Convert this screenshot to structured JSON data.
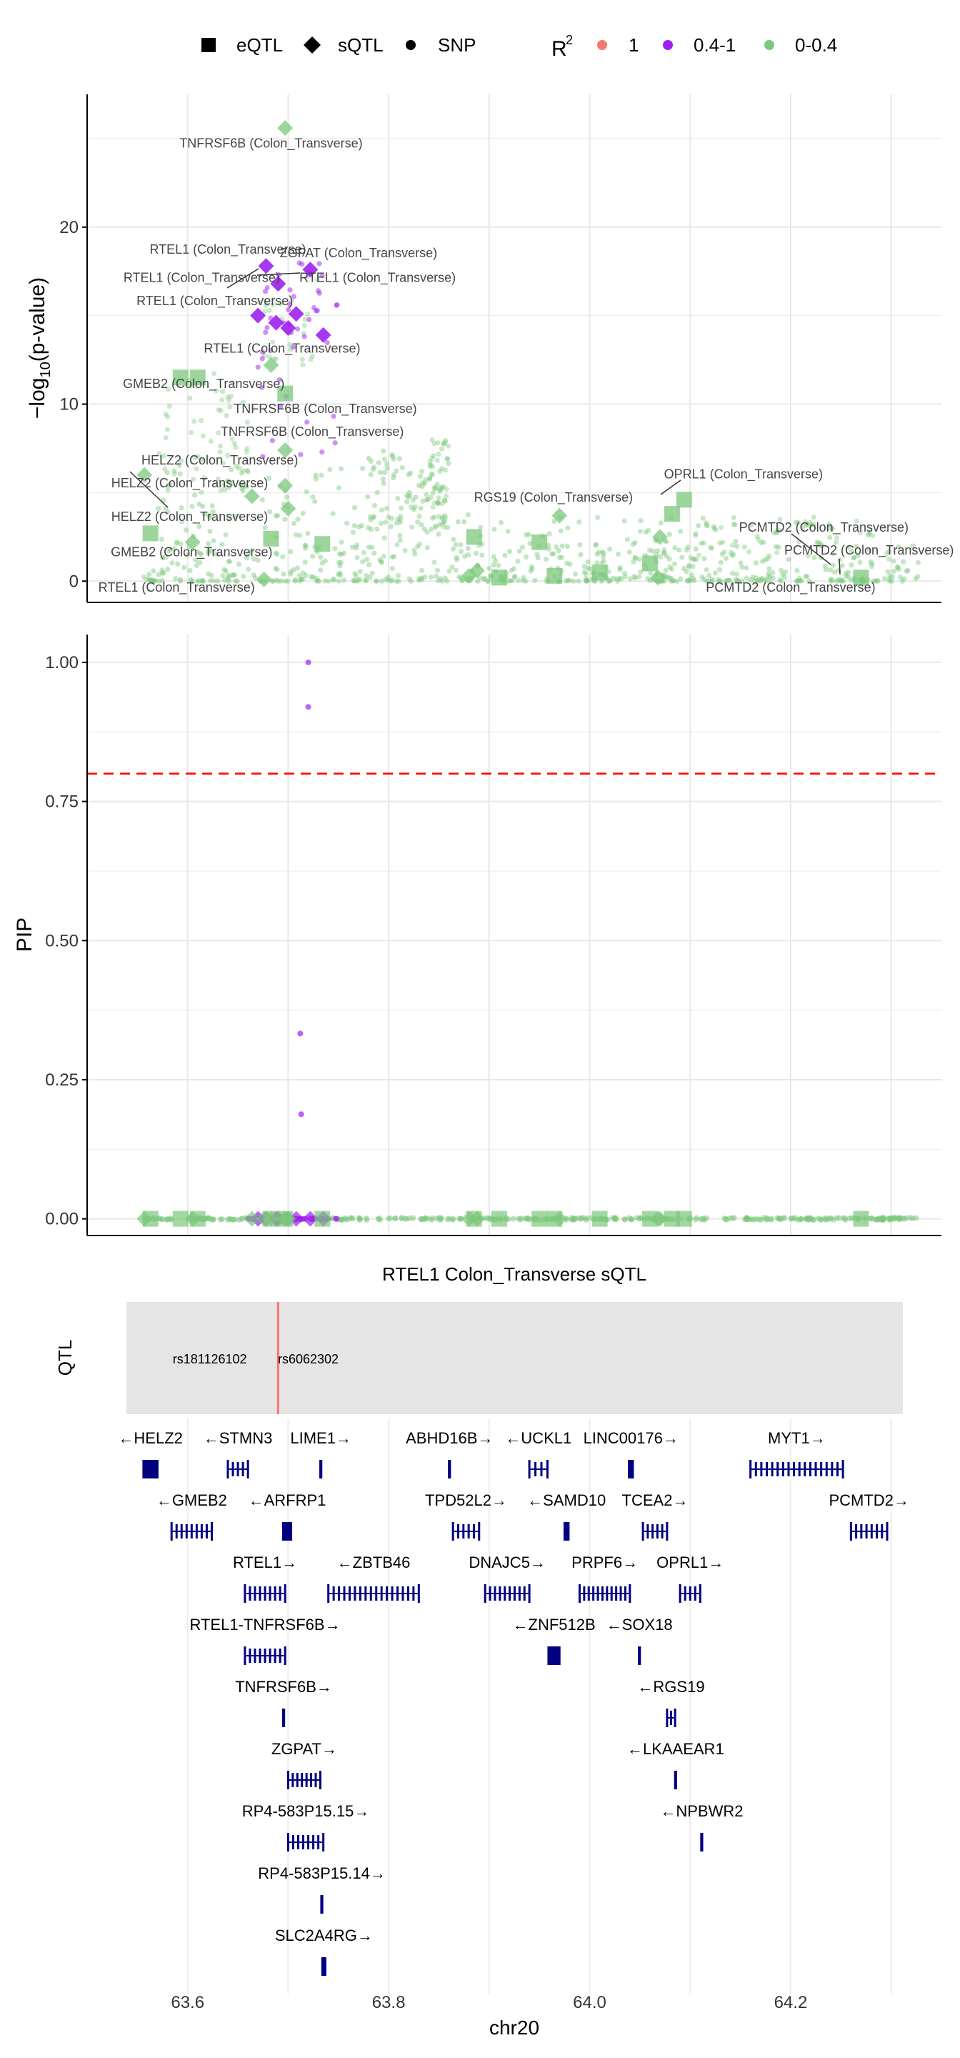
{
  "legend": {
    "shape_items": [
      {
        "label": "eQTL",
        "shape": "square"
      },
      {
        "label": "sQTL",
        "shape": "diamond"
      },
      {
        "label": "SNP",
        "shape": "circle"
      }
    ],
    "r2_title_main": "R",
    "r2_title_sup": "2",
    "r2_items": [
      {
        "label": "1",
        "color": "#F8766D"
      },
      {
        "label": "0.4-1",
        "color": "#A020F0"
      },
      {
        "label": "0-0.4",
        "color": "#7CC87C"
      }
    ]
  },
  "chart_data": [
    {
      "type": "scatter",
      "name_key": "pvalue-panel",
      "ylabel_main": "−log",
      "ylabel_sub": "10",
      "ylabel_tail": "(p-value)",
      "xlim": [
        63.5,
        64.35
      ],
      "ylim": [
        -1.2,
        27.5
      ],
      "yticks": [
        0,
        10,
        20
      ],
      "xgrid": [
        63.6,
        63.7,
        63.8,
        63.9,
        64.0,
        64.1,
        64.2,
        64.3
      ],
      "grid": true,
      "colors": {
        "low": "#7CC87C",
        "high": "#A020F0"
      },
      "points": [
        {
          "x": 63.697,
          "y": 25.6,
          "shape": "diamond",
          "r2": "low"
        },
        {
          "x": 63.678,
          "y": 17.8,
          "shape": "diamond",
          "r2": "high"
        },
        {
          "x": 63.722,
          "y": 17.6,
          "shape": "diamond",
          "r2": "high"
        },
        {
          "x": 63.69,
          "y": 16.8,
          "shape": "diamond",
          "r2": "high"
        },
        {
          "x": 63.7,
          "y": 14.3,
          "shape": "diamond",
          "r2": "high"
        },
        {
          "x": 63.688,
          "y": 14.6,
          "shape": "diamond",
          "r2": "high"
        },
        {
          "x": 63.708,
          "y": 15.1,
          "shape": "diamond",
          "r2": "high"
        },
        {
          "x": 63.735,
          "y": 13.9,
          "shape": "diamond",
          "r2": "high"
        },
        {
          "x": 63.67,
          "y": 15.0,
          "shape": "diamond",
          "r2": "high"
        },
        {
          "x": 63.683,
          "y": 12.2,
          "shape": "diamond",
          "r2": "low"
        },
        {
          "x": 63.697,
          "y": 10.6,
          "shape": "square",
          "r2": "low"
        },
        {
          "x": 63.697,
          "y": 7.4,
          "shape": "diamond",
          "r2": "low"
        },
        {
          "x": 63.697,
          "y": 5.4,
          "shape": "diamond",
          "r2": "low"
        },
        {
          "x": 63.7,
          "y": 4.1,
          "shape": "diamond",
          "r2": "low"
        },
        {
          "x": 63.664,
          "y": 4.8,
          "shape": "diamond",
          "r2": "low"
        },
        {
          "x": 63.593,
          "y": 11.5,
          "shape": "square",
          "r2": "low"
        },
        {
          "x": 63.61,
          "y": 11.5,
          "shape": "square",
          "r2": "low"
        },
        {
          "x": 63.557,
          "y": 6.0,
          "shape": "diamond",
          "r2": "low"
        },
        {
          "x": 63.563,
          "y": 2.7,
          "shape": "square",
          "r2": "low"
        },
        {
          "x": 63.605,
          "y": 2.2,
          "shape": "diamond",
          "r2": "low"
        },
        {
          "x": 63.683,
          "y": 2.4,
          "shape": "square",
          "r2": "low"
        },
        {
          "x": 63.734,
          "y": 2.1,
          "shape": "square",
          "r2": "low"
        },
        {
          "x": 63.676,
          "y": 0.1,
          "shape": "diamond",
          "r2": "low"
        },
        {
          "x": 63.885,
          "y": 2.5,
          "shape": "square",
          "r2": "low"
        },
        {
          "x": 63.88,
          "y": 0.3,
          "shape": "diamond",
          "r2": "low"
        },
        {
          "x": 63.888,
          "y": 0.6,
          "shape": "diamond",
          "r2": "low"
        },
        {
          "x": 63.91,
          "y": 0.2,
          "shape": "square",
          "r2": "low"
        },
        {
          "x": 63.95,
          "y": 2.2,
          "shape": "square",
          "r2": "low"
        },
        {
          "x": 63.97,
          "y": 3.7,
          "shape": "diamond",
          "r2": "low"
        },
        {
          "x": 63.965,
          "y": 0.3,
          "shape": "square",
          "r2": "low"
        },
        {
          "x": 64.01,
          "y": 0.5,
          "shape": "square",
          "r2": "low"
        },
        {
          "x": 64.06,
          "y": 1.0,
          "shape": "square",
          "r2": "low"
        },
        {
          "x": 64.07,
          "y": 2.5,
          "shape": "diamond",
          "r2": "low"
        },
        {
          "x": 64.068,
          "y": 0.2,
          "shape": "diamond",
          "r2": "low"
        },
        {
          "x": 64.082,
          "y": 3.8,
          "shape": "square",
          "r2": "low"
        },
        {
          "x": 64.094,
          "y": 4.6,
          "shape": "square",
          "r2": "low"
        },
        {
          "x": 64.27,
          "y": 0.2,
          "shape": "square",
          "r2": "low"
        }
      ],
      "annotations": [
        {
          "text": "TNFRSF6B (Colon_Transverse)",
          "x": 63.683,
          "y": 24.5
        },
        {
          "text": "RTEL1 (Colon_Transverse)",
          "x": 63.64,
          "y": 18.5
        },
        {
          "text": "ZGPAT (Colon_Transverse)",
          "x": 63.77,
          "y": 18.3
        },
        {
          "text": "RTEL1 (Colon_Transverse)",
          "x": 63.614,
          "y": 16.9
        },
        {
          "text": "RTEL1 (Colon_Transverse)",
          "x": 63.789,
          "y": 16.9
        },
        {
          "text": "RTEL1 (Colon_Transverse)",
          "x": 63.627,
          "y": 15.6
        },
        {
          "text": "RTEL1 (Colon_Transverse)",
          "x": 63.694,
          "y": 12.9
        },
        {
          "text": "GMEB2 (Colon_Transverse)",
          "x": 63.616,
          "y": 10.9
        },
        {
          "text": "TNFRSF6B (Colon_Transverse)",
          "x": 63.737,
          "y": 9.5
        },
        {
          "text": "TNFRSF6B (Colon_Transverse)",
          "x": 63.724,
          "y": 8.2
        },
        {
          "text": "HELZ2 (Colon_Transverse)",
          "x": 63.632,
          "y": 6.6
        },
        {
          "text": "HELZ2 (Colon_Transverse)",
          "x": 63.602,
          "y": 5.3
        },
        {
          "text": "HELZ2 (Colon_Transverse)",
          "x": 63.602,
          "y": 3.4
        },
        {
          "text": "GMEB2 (Colon_Transverse)",
          "x": 63.604,
          "y": 1.4
        },
        {
          "text": "RTEL1 (Colon_Transverse)",
          "x": 63.589,
          "y": -0.6
        },
        {
          "text": "RGS19 (Colon_Transverse)",
          "x": 63.964,
          "y": 4.5
        },
        {
          "text": "OPRL1 (Colon_Transverse)",
          "x": 64.153,
          "y": 5.8
        },
        {
          "text": "PCMTD2 (Colon_Transverse)",
          "x": 64.233,
          "y": 2.8
        },
        {
          "text": "PCMTD2 (Colon_Transverse)",
          "x": 64.278,
          "y": 1.5
        },
        {
          "text": "PCMTD2 (Colon_Transverse)",
          "x": 64.2,
          "y": -0.6
        }
      ]
    },
    {
      "type": "scatter",
      "name_key": "pip-panel",
      "ylabel": "PIP",
      "xlim": [
        63.5,
        64.35
      ],
      "ylim": [
        -0.03,
        1.05
      ],
      "yticks": [
        0.0,
        0.25,
        0.5,
        0.75,
        1.0
      ],
      "ytick_labels": [
        "0.00",
        "0.25",
        "0.50",
        "0.75",
        "1.00"
      ],
      "threshold": 0.8,
      "threshold_color": "#FF0000",
      "grid": true,
      "points": [
        {
          "x": 63.72,
          "y": 1.0,
          "shape": "circle",
          "r2": "high"
        },
        {
          "x": 63.72,
          "y": 0.92,
          "shape": "circle",
          "r2": "high"
        },
        {
          "x": 63.712,
          "y": 0.333,
          "shape": "circle",
          "r2": "high"
        },
        {
          "x": 63.713,
          "y": 0.188,
          "shape": "circle",
          "r2": "high"
        }
      ]
    },
    {
      "type": "gene-track",
      "name_key": "gene-panel",
      "title": "RTEL1 Colon_Transverse sQTL",
      "qtl_label": "QTL",
      "xlabel": "chr20",
      "xticks": [
        63.6,
        63.8,
        64.0,
        64.2
      ],
      "xtick_labels": [
        "63.6",
        "63.8",
        "64.0",
        "64.2"
      ],
      "region": [
        63.54,
        64.3
      ],
      "lead_snp_x": 63.69,
      "snp_labels": [
        {
          "text": "rs181126102",
          "x": 63.622
        },
        {
          "text": "rs6062302",
          "x": 63.72
        }
      ],
      "genes": [
        {
          "label": "←HELZ2",
          "start": 63.555,
          "end": 63.571,
          "row": 0,
          "type": "block"
        },
        {
          "label": "←STMN3",
          "start": 63.64,
          "end": 63.66,
          "row": 0,
          "type": "exons"
        },
        {
          "label": "LIME1→",
          "start": 63.731,
          "end": 63.734,
          "row": 0,
          "type": "block"
        },
        {
          "label": "ABHD16B→",
          "start": 63.859,
          "end": 63.862,
          "row": 0,
          "type": "block"
        },
        {
          "label": "←UCKL1",
          "start": 63.94,
          "end": 63.958,
          "row": 0,
          "type": "exons"
        },
        {
          "label": "LINC00176→",
          "start": 64.038,
          "end": 64.044,
          "row": 0,
          "type": "block"
        },
        {
          "label": "MYT1→",
          "start": 64.16,
          "end": 64.252,
          "row": 0,
          "type": "exons"
        },
        {
          "label": "←GMEB2",
          "start": 63.584,
          "end": 63.624,
          "row": 1,
          "type": "exons"
        },
        {
          "label": "←ARFRP1",
          "start": 63.694,
          "end": 63.704,
          "row": 1,
          "type": "block"
        },
        {
          "label": "TPD52L2→",
          "start": 63.864,
          "end": 63.89,
          "row": 1,
          "type": "exons"
        },
        {
          "label": "←SAMD10",
          "start": 63.974,
          "end": 63.98,
          "row": 1,
          "type": "block"
        },
        {
          "label": "TCEA2→",
          "start": 64.053,
          "end": 64.077,
          "row": 1,
          "type": "exons"
        },
        {
          "label": "PCMTD2→",
          "start": 64.26,
          "end": 64.296,
          "row": 1,
          "type": "exons"
        },
        {
          "label": "RTEL1→",
          "start": 63.657,
          "end": 63.697,
          "row": 2,
          "type": "exons"
        },
        {
          "label": "←ZBTB46",
          "start": 63.74,
          "end": 63.83,
          "row": 2,
          "type": "exons"
        },
        {
          "label": "DNAJC5→",
          "start": 63.896,
          "end": 63.94,
          "row": 2,
          "type": "exons"
        },
        {
          "label": "PRPF6→",
          "start": 63.99,
          "end": 64.04,
          "row": 2,
          "type": "exons"
        },
        {
          "label": "OPRL1→",
          "start": 64.09,
          "end": 64.11,
          "row": 2,
          "type": "exons"
        },
        {
          "label": "RTEL1-TNFRSF6B→",
          "start": 63.657,
          "end": 63.697,
          "row": 3,
          "type": "exons"
        },
        {
          "label": "←ZNF512B",
          "start": 63.958,
          "end": 63.971,
          "row": 3,
          "type": "block"
        },
        {
          "label": "←SOX18",
          "start": 64.048,
          "end": 64.051,
          "row": 3,
          "type": "block"
        },
        {
          "label": "TNFRSF6B→",
          "start": 63.694,
          "end": 63.697,
          "row": 4,
          "type": "block"
        },
        {
          "label": "←RGS19",
          "start": 64.077,
          "end": 64.085,
          "row": 4,
          "type": "exons"
        },
        {
          "label": "ZGPAT→",
          "start": 63.7,
          "end": 63.732,
          "row": 5,
          "type": "exons"
        },
        {
          "label": "←LKAAEAR1",
          "start": 64.084,
          "end": 64.087,
          "row": 5,
          "type": "block"
        },
        {
          "label": "RP4-583P15.15→",
          "start": 63.7,
          "end": 63.735,
          "row": 6,
          "type": "exons"
        },
        {
          "label": "←NPBWR2",
          "start": 64.11,
          "end": 64.113,
          "row": 6,
          "type": "block"
        },
        {
          "label": "RP4-583P15.14→",
          "start": 63.732,
          "end": 63.735,
          "row": 7,
          "type": "block"
        },
        {
          "label": "SLC2A4RG→",
          "start": 63.733,
          "end": 63.738,
          "row": 8,
          "type": "block"
        }
      ]
    }
  ]
}
